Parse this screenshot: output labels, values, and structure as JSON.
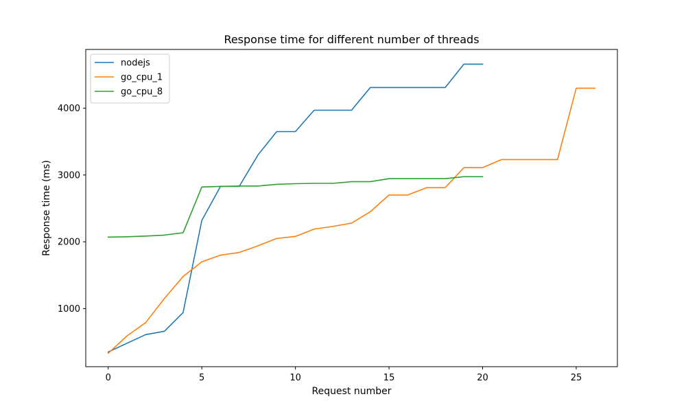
{
  "chart_data": {
    "type": "line",
    "title": "Response time for different number of threads",
    "xlabel": "Request number",
    "ylabel": "Response time (ms)",
    "xlim": [
      -1.2,
      27.2
    ],
    "ylim": [
      130,
      4880
    ],
    "xticks": [
      0,
      5,
      10,
      15,
      20,
      25
    ],
    "yticks": [
      1000,
      2000,
      3000,
      4000
    ],
    "grid": false,
    "legend_position": "top-left",
    "series": [
      {
        "name": "nodejs",
        "color": "#1f77b4",
        "x": [
          0,
          1,
          2,
          3,
          4,
          5,
          6,
          7,
          8,
          9,
          10,
          11,
          12,
          13,
          14,
          15,
          16,
          17,
          18,
          19,
          20
        ],
        "values": [
          350,
          480,
          610,
          660,
          940,
          2320,
          2830,
          2830,
          3300,
          3650,
          3650,
          3970,
          3970,
          3970,
          4310,
          4310,
          4310,
          4310,
          4310,
          4660,
          4660
        ]
      },
      {
        "name": "go_cpu_1",
        "color": "#ff7f0e",
        "x": [
          0,
          1,
          2,
          3,
          4,
          5,
          6,
          7,
          8,
          9,
          10,
          11,
          12,
          13,
          14,
          15,
          16,
          17,
          18,
          19,
          20,
          21,
          22,
          23,
          24,
          25,
          26
        ],
        "values": [
          330,
          590,
          790,
          1150,
          1480,
          1700,
          1800,
          1840,
          1940,
          2050,
          2080,
          2190,
          2230,
          2280,
          2450,
          2700,
          2700,
          2810,
          2810,
          3110,
          3110,
          3230,
          3230,
          3230,
          3230,
          4300,
          4300
        ]
      },
      {
        "name": "go_cpu_8",
        "color": "#2ca02c",
        "x": [
          0,
          1,
          2,
          3,
          4,
          5,
          6,
          7,
          8,
          9,
          10,
          11,
          12,
          13,
          14,
          15,
          16,
          17,
          18,
          19,
          20
        ],
        "values": [
          2070,
          2075,
          2085,
          2100,
          2135,
          2820,
          2830,
          2835,
          2835,
          2860,
          2870,
          2875,
          2875,
          2900,
          2900,
          2945,
          2945,
          2945,
          2945,
          2975,
          2975
        ]
      }
    ]
  }
}
